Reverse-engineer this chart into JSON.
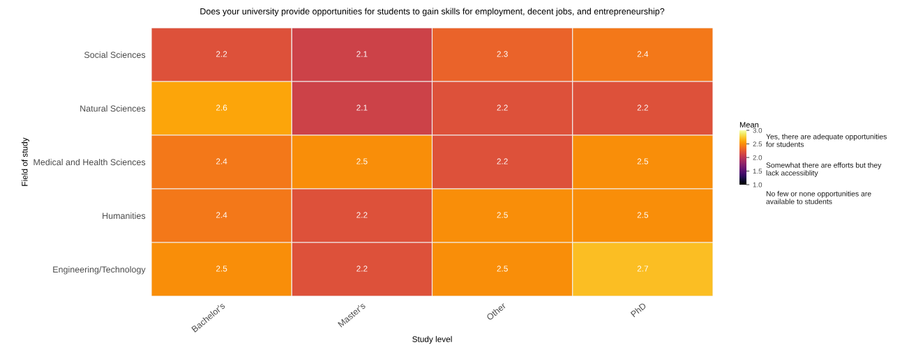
{
  "chart_data": {
    "type": "heatmap",
    "title": "Does your university provide opportunities for students to gain skills for employment, decent jobs, and entrepreneurship?",
    "xlabel": "Study level",
    "ylabel": "Field of study",
    "clabel": "Mean",
    "categories": [
      "Bachelor's",
      "Master's",
      "Other",
      "PhD"
    ],
    "y_categories": [
      "Social Sciences",
      "Natural Sciences",
      "Medical and Health Sciences",
      "Humanities",
      "Engineering/Technology"
    ],
    "cells": [
      [
        2.2,
        2.1,
        2.3,
        2.4
      ],
      [
        2.6,
        2.1,
        2.2,
        2.2
      ],
      [
        2.4,
        2.5,
        2.2,
        2.5
      ],
      [
        2.4,
        2.2,
        2.5,
        2.5
      ],
      [
        2.5,
        2.2,
        2.5,
        2.7
      ]
    ],
    "data_labels": true,
    "clim": [
      1.0,
      3.0
    ],
    "cticks": [
      {
        "value": 1.0,
        "label": "1.0"
      },
      1.5,
      {
        "value": 2.0,
        "label": "2.0"
      },
      2.5,
      {
        "value": 3.0,
        "label": "3.0"
      }
    ],
    "annotations": [
      "Yes, there are adequate opportunities\nfor students",
      "Somewhat there are efforts but they\nlack accessiblity",
      "No few or none opportunities are\navailable to students"
    ]
  }
}
